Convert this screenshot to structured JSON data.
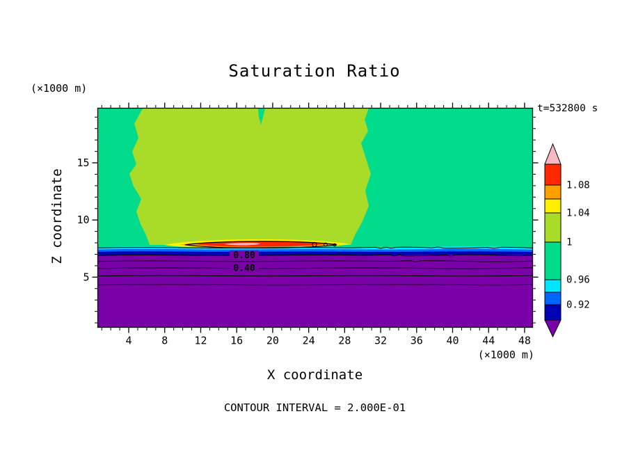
{
  "chart_data": {
    "type": "heatmap",
    "subtype": "filled contour plot with line contours and colorbar",
    "title": "Saturation Ratio",
    "time_label": "t=532800 s",
    "xlabel": "X coordinate",
    "x_units": "(×1000 m)",
    "ylabel": "Z coordinate",
    "y_units": "(×1000 m)",
    "contour_interval_label": "CONTOUR INTERVAL = 2.000E-01",
    "contour_interval": 0.2,
    "xlim": [
      0.5,
      48.9
    ],
    "ylim": [
      0.6,
      19.8
    ],
    "x_ticks": [
      4,
      8,
      12,
      16,
      20,
      24,
      28,
      32,
      36,
      40,
      44,
      48
    ],
    "x_tick_labels": [
      "4",
      "8",
      "12",
      "16",
      "20",
      "24",
      "28",
      "32",
      "36",
      "40",
      "44",
      "48"
    ],
    "x_minor_step": 1,
    "y_ticks": [
      5,
      10,
      15
    ],
    "y_tick_labels": [
      "5",
      "10",
      "15"
    ],
    "y_minor_step": 1,
    "contour_line_labels": [
      {
        "text": "0.80",
        "value": 0.8
      },
      {
        "text": "0.40",
        "value": 0.4
      }
    ],
    "line_contour_values": [
      1.0,
      0.8,
      0.6,
      0.4,
      0.2,
      0.0
    ],
    "palette": {
      "green": "#00DC8C",
      "yellow_green": "#A8DC28",
      "yellow": "#FFEE00",
      "orange": "#FFA000",
      "red": "#FF2800",
      "pink": "#F7B8C4",
      "cyan": "#00E6FF",
      "blue": "#0064FF",
      "navy": "#0000B4",
      "purple": "#7A00A8",
      "frame": "#000000"
    },
    "colorbar": {
      "labels": [
        "1.08",
        "1.04",
        "1",
        "0.96",
        "0.92"
      ],
      "values": [
        1.08,
        1.04,
        1.0,
        0.96,
        0.92
      ],
      "colors": [
        "#F7B8C4",
        "#FF2800",
        "#FFA000",
        "#FFEE00",
        "#A8DC28",
        "#00DC8C",
        "#00E6FF",
        "#0064FF",
        "#0000B4",
        "#7A00A8"
      ],
      "color_names": [
        "pink",
        "red",
        "orange",
        "yellow",
        "yellow-green",
        "green",
        "cyan",
        "blue",
        "navy",
        "purple"
      ]
    },
    "field_regions": [
      {
        "color": "green",
        "hex": "#00DC8C",
        "description": "background region, saturation ratio ≈ 0.96–1.00, upper left and right of plume"
      },
      {
        "color": "yellow-green",
        "hex": "#A8DC28",
        "description": "central plume ≈ 1.00–1.04, x ≈ 5–30, z ≈ 7.5–20"
      },
      {
        "color": "yellow/orange/red/pink",
        "description": "thin supersaturated layer ≈ 1.04–1.12+ near z ≈ 7.5, x ≈ 9–28, outlined by black contour"
      },
      {
        "color": "cyan/blue/navy",
        "description": "thin stratified layers ≈ 0.88–0.96 just below z ≈ 7"
      },
      {
        "color": "purple",
        "hex": "#7A00A8",
        "description": "sub-saturated lower region below z ≈ 6.5 with line contours 0.80, 0.60, 0.40, 0.20 decreasing downward"
      }
    ]
  }
}
